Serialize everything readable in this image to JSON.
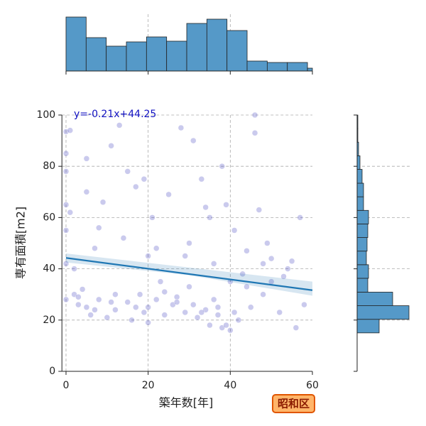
{
  "chart_data": [
    {
      "type": "scatter",
      "x_label": "築年数[年]",
      "y_label": "専有面積[m2]",
      "annotation": "y=-0.21x+44.25",
      "label_box": "昭和区",
      "xlim": [
        -1,
        60
      ],
      "ylim": [
        0,
        100
      ],
      "xticks": [
        0,
        20,
        40,
        60
      ],
      "yticks": [
        0,
        20,
        40,
        60,
        80,
        100
      ],
      "grid": true,
      "color": "#2a2ab8",
      "x": [
        0,
        0,
        0,
        0,
        0,
        0,
        0,
        1,
        1,
        2,
        3,
        4,
        5,
        5,
        6,
        7,
        8,
        9,
        10,
        11,
        12,
        13,
        14,
        15,
        16,
        17,
        18,
        19,
        20,
        20,
        20,
        21,
        22,
        23,
        24,
        25,
        26,
        27,
        28,
        29,
        30,
        30,
        31,
        32,
        33,
        34,
        35,
        35,
        36,
        37,
        38,
        38,
        39,
        40,
        40,
        41,
        42,
        43,
        44,
        45,
        46,
        47,
        48,
        49,
        50,
        52,
        54,
        56,
        57,
        58,
        2,
        5,
        8,
        12,
        15,
        19,
        22,
        27,
        31,
        34,
        37,
        41,
        44,
        48,
        53,
        3,
        7,
        11,
        17,
        24,
        29,
        33,
        36,
        39,
        46,
        50,
        55
      ],
      "values": [
        93.5,
        85,
        78,
        65,
        55,
        42,
        28,
        94,
        62,
        30,
        26,
        32,
        83,
        25,
        22,
        48,
        28,
        66,
        21,
        88,
        24,
        96,
        52,
        27,
        20,
        72,
        30,
        75,
        25,
        45,
        19,
        60,
        28,
        35,
        22,
        69,
        26,
        29,
        95,
        23,
        50,
        33,
        90,
        21,
        75,
        24,
        60,
        18,
        42,
        22,
        80,
        17,
        65,
        16,
        35,
        55,
        20,
        38,
        47,
        25,
        100,
        63,
        30,
        50,
        35,
        23,
        40,
        17,
        60,
        26,
        40,
        70,
        56,
        30,
        78,
        23,
        48,
        27,
        26,
        64,
        25,
        23,
        33,
        42,
        37,
        29,
        24,
        27,
        25,
        31,
        45,
        23,
        28,
        18,
        93,
        44,
        43
      ],
      "regression": {
        "x": [
          0,
          60
        ],
        "y": [
          44.25,
          31.65
        ],
        "ci_x": [
          0,
          30,
          60
        ],
        "ci_upper": [
          46,
          40.5,
          35
        ],
        "ci_lower": [
          42.5,
          37.5,
          29.5
        ],
        "color": "#1f77b4"
      }
    },
    {
      "type": "histogram",
      "bins": [
        0,
        4.9,
        9.8,
        14.7,
        19.6,
        24.5,
        29.4,
        34.3,
        39.2,
        44.1,
        49,
        53.9,
        58.8,
        60
      ],
      "values": [
        76,
        47,
        35,
        41,
        48,
        42,
        67,
        73,
        57,
        14,
        12,
        12,
        4
      ],
      "xlim": [
        -1,
        60
      ],
      "xticks": [
        0,
        20,
        40,
        60
      ],
      "ylim": [
        0,
        78
      ],
      "grid": true,
      "color": "#5599c8"
    },
    {
      "type": "histogram",
      "orientation": "horizontal",
      "bins": [
        15,
        20.3,
        25.6,
        30.9,
        36.3,
        41.6,
        46.9,
        52.2,
        57.5,
        62.8,
        68.1,
        73.4,
        78.8,
        84.1,
        89.4,
        94.7,
        100
      ],
      "values": [
        31,
        73,
        50,
        15,
        16,
        13,
        14,
        15,
        16,
        9,
        9,
        7,
        4,
        2,
        1,
        1
      ],
      "ylim": [
        0,
        100
      ],
      "yticks": [
        0,
        20,
        40,
        60,
        80,
        100
      ],
      "xlim": [
        0,
        75
      ],
      "grid": true,
      "color": "#5599c8"
    }
  ]
}
